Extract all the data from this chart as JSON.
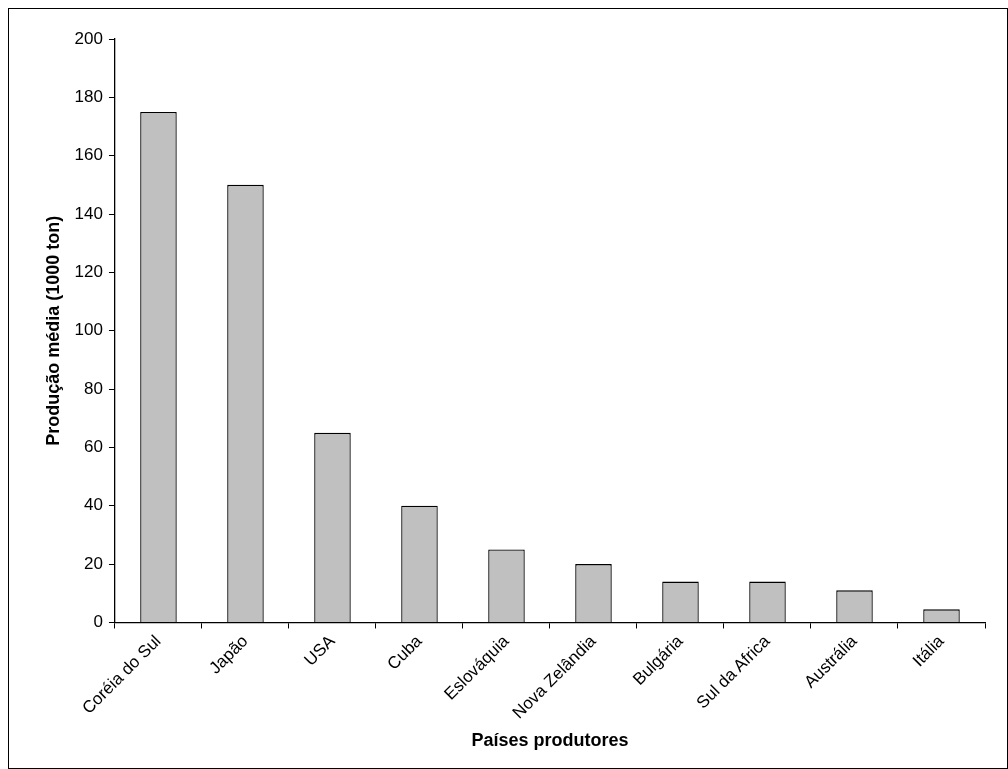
{
  "chart_data": {
    "type": "bar",
    "xlabel": "Países produtores",
    "ylabel": "Produção média (1000 ton)",
    "categories": [
      "Coréia do Sul",
      "Japão",
      "USA",
      "Cuba",
      "Eslováquia",
      "Nova Zelândia",
      "Bulgária",
      "Sul da Africa",
      "Austrália",
      "Itália"
    ],
    "values": [
      175,
      150,
      65,
      40,
      25,
      20,
      14,
      14,
      11,
      4.5
    ],
    "color": "#c0c0c0",
    "ylim": [
      0,
      200
    ],
    "yticks": [
      0,
      20,
      40,
      60,
      80,
      100,
      120,
      140,
      160,
      180,
      200
    ],
    "grid": false,
    "legend": false
  }
}
